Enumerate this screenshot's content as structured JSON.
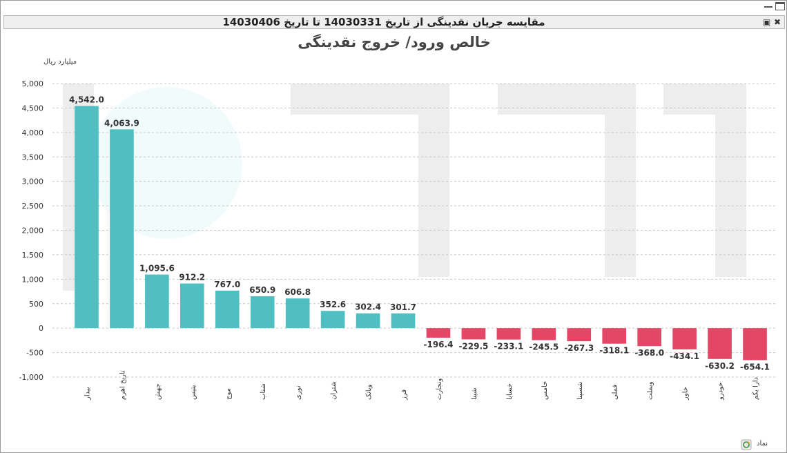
{
  "window": {
    "header_title": "مقایسه جریان نقدینگی از تاریخ 14030331 تا تاریخ 14030406",
    "minimize_icon": "minimize-icon",
    "maximize_icon": "maximize-icon",
    "print_icon": "printer-icon",
    "close_icon": "close-icon"
  },
  "chart_data": {
    "type": "bar",
    "title": "خالص ورود/ خروج نقدینگی",
    "ylabel": "میلیارد ریال",
    "xlabel": "نماد",
    "ylim": [
      -1000,
      5000
    ],
    "yticks": [
      5000,
      4500,
      4000,
      3500,
      3000,
      2500,
      2000,
      1500,
      1000,
      500,
      0,
      -500,
      -1000
    ],
    "ytick_labels": [
      "5,000",
      "4,500",
      "4,000",
      "3,500",
      "3,000",
      "2,500",
      "2,000",
      "1,500",
      "1,000",
      "500",
      "0",
      "-500",
      "-1,000"
    ],
    "grid": true,
    "categories": [
      "بیدار",
      "تاریخ اهرم",
      "جهش",
      "یتیس",
      "موج",
      "شتاب",
      "نوری",
      "شتران",
      "وبانک",
      "فرز",
      "وتجارت",
      "شبنا",
      "خسابا",
      "خامس",
      "شسپنا",
      "فملی",
      "وبملت",
      "خاور",
      "خودرو",
      "دارا یکم"
    ],
    "values": [
      4542.0,
      4063.9,
      1095.6,
      912.2,
      767.0,
      650.9,
      606.8,
      352.6,
      302.4,
      301.7,
      -196.4,
      -229.5,
      -233.1,
      -245.5,
      -267.3,
      -318.1,
      -368.0,
      -434.1,
      -630.2,
      -654.1
    ],
    "value_labels": [
      "4,542.0",
      "4,063.9",
      "1,095.6",
      "912.2",
      "767.0",
      "650.9",
      "606.8",
      "352.6",
      "302.4",
      "301.7",
      "-196.4",
      "-229.5",
      "-233.1",
      "-245.5",
      "-267.3",
      "-318.1",
      "-368.0",
      "-434.1",
      "-630.2",
      "-654.1"
    ],
    "colors": {
      "positive": "#4fbfc1",
      "negative": "#e34765"
    },
    "x_axis_icon": "refresh-icon"
  }
}
